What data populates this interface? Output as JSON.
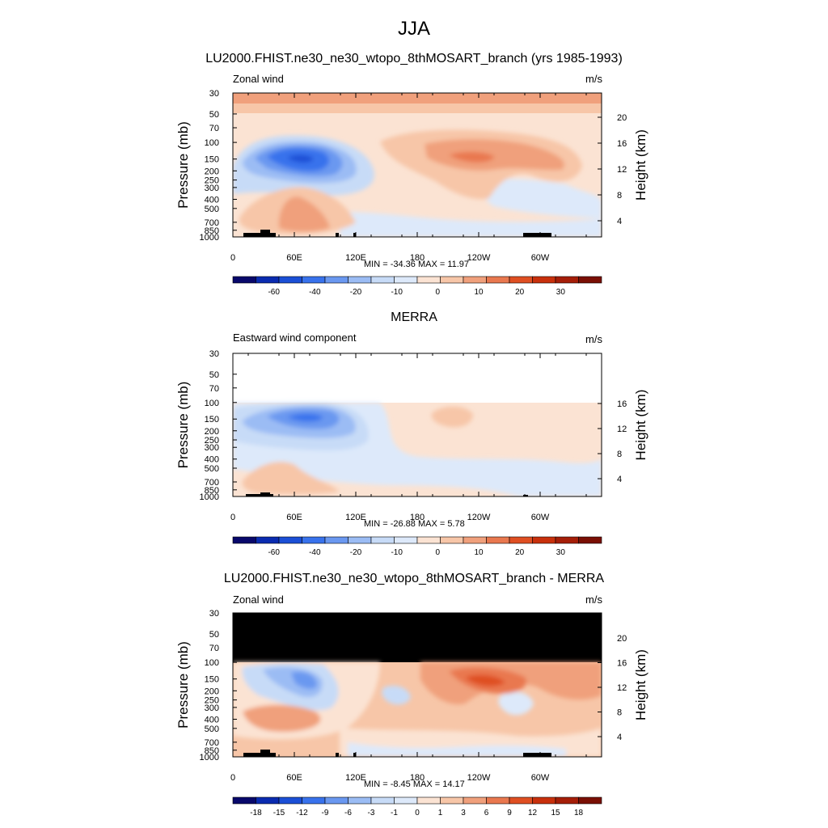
{
  "main_title": "JJA",
  "colors": {
    "blues": [
      "#08086b",
      "#0a2bb0",
      "#1b4fd6",
      "#3872ec",
      "#6a98f0",
      "#9bbcf4",
      "#c7dbf7",
      "#dde9fa"
    ],
    "reds": [
      "#fbe3d3",
      "#f7c6a8",
      "#f0a07c",
      "#e9784f",
      "#df4f22",
      "#c8300c",
      "#a51e08",
      "#7a0f04"
    ],
    "mask": "#000000",
    "nodata": "#ffffff"
  },
  "colorbar_abs": {
    "labels": [
      "-60",
      "-40",
      "-20",
      "-10",
      "0",
      "10",
      "20",
      "30"
    ]
  },
  "colorbar_diff": {
    "labels": [
      "-18",
      "-15",
      "-12",
      "-9",
      "-6",
      "-3",
      "-1",
      "0",
      "1",
      "3",
      "6",
      "9",
      "12",
      "15",
      "18"
    ]
  },
  "axes": {
    "xticks": [
      "0",
      "60E",
      "120E",
      "180",
      "120W",
      "60W"
    ],
    "pressure_ticks": [
      "30",
      "50",
      "70",
      "100",
      "150",
      "200",
      "250",
      "300",
      "400",
      "500",
      "700",
      "850",
      "1000"
    ],
    "ylabel_left": "Pressure (mb)",
    "ylabel_right": "Height (km)"
  },
  "panels": [
    {
      "title": "LU2000.FHIST.ne30_ne30_wtopo_8thMOSART_branch (yrs 1985-1993)",
      "left_label": "Zonal wind",
      "right_label": "m/s",
      "height_ticks": [
        "20",
        "16",
        "12",
        "8",
        "4"
      ],
      "stats": "MIN = -34.36  MAX =  11.97"
    },
    {
      "title": "MERRA",
      "left_label": "Eastward wind component",
      "right_label": "m/s",
      "height_ticks": [
        "16",
        "12",
        "8",
        "4"
      ],
      "stats": "MIN = -26.88  MAX =   5.78"
    },
    {
      "title": "LU2000.FHIST.ne30_ne30_wtopo_8thMOSART_branch - MERRA",
      "left_label": "Zonal wind",
      "right_label": "m/s",
      "height_ticks": [
        "20",
        "16",
        "12",
        "8",
        "4"
      ],
      "stats": "MIN =  -8.45  MAX =  14.17"
    }
  ],
  "chart_data": [
    {
      "type": "heatmap",
      "title": "LU2000.FHIST.ne30_ne30_wtopo_8thMOSART_branch (yrs 1985-1993)",
      "variable": "Zonal wind",
      "units": "m/s",
      "x_axis": [
        "0",
        "60E",
        "120E",
        "180",
        "120W",
        "60W"
      ],
      "y_axis_pressure_mb": [
        30,
        50,
        70,
        100,
        150,
        200,
        250,
        300,
        400,
        500,
        700,
        850,
        1000
      ],
      "y_axis_height_km": [
        20,
        16,
        12,
        8,
        4
      ],
      "min": -34.36,
      "max": 11.97,
      "colorbar_levels": [
        -60,
        -40,
        -20,
        -10,
        0,
        10,
        20,
        30
      ]
    },
    {
      "type": "heatmap",
      "title": "MERRA",
      "variable": "Eastward wind component",
      "units": "m/s",
      "x_axis": [
        "0",
        "60E",
        "120E",
        "180",
        "120W",
        "60W"
      ],
      "y_axis_pressure_mb": [
        30,
        50,
        70,
        100,
        150,
        200,
        250,
        300,
        400,
        500,
        700,
        850,
        1000
      ],
      "y_axis_height_km": [
        16,
        12,
        8,
        4
      ],
      "min": -26.88,
      "max": 5.78,
      "colorbar_levels": [
        -60,
        -40,
        -20,
        -10,
        0,
        10,
        20,
        30
      ]
    },
    {
      "type": "heatmap",
      "title": "LU2000.FHIST.ne30_ne30_wtopo_8thMOSART_branch - MERRA",
      "variable": "Zonal wind",
      "units": "m/s",
      "x_axis": [
        "0",
        "60E",
        "120E",
        "180",
        "120W",
        "60W"
      ],
      "y_axis_pressure_mb": [
        30,
        50,
        70,
        100,
        150,
        200,
        250,
        300,
        400,
        500,
        700,
        850,
        1000
      ],
      "y_axis_height_km": [
        20,
        16,
        12,
        8,
        4
      ],
      "min": -8.45,
      "max": 14.17,
      "colorbar_levels": [
        -18,
        -15,
        -12,
        -9,
        -6,
        -3,
        -1,
        0,
        1,
        3,
        6,
        9,
        12,
        15,
        18
      ]
    }
  ]
}
